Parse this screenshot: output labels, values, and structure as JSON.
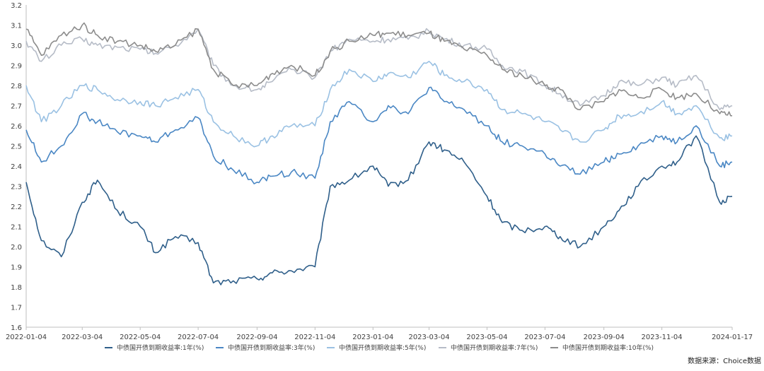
{
  "chart_data": {
    "type": "line",
    "ylim": [
      1.6,
      3.2
    ],
    "yticks": [
      "3.2",
      "3.1",
      "3.0",
      "2.9",
      "2.8",
      "2.7",
      "2.6",
      "2.5",
      "2.4",
      "2.3",
      "2.2",
      "2.1",
      "2.0",
      "1.9",
      "1.8",
      "1.7",
      "1.6"
    ],
    "xtick_labels": [
      "2022-01-04",
      "2022-03-04",
      "2022-05-04",
      "2022-07-04",
      "2022-09-04",
      "2022-11-04",
      "2023-01-04",
      "2023-03-04",
      "2023-05-04",
      "2023-07-04",
      "2023-09-04",
      "2023-11-04",
      "2024-01-17"
    ],
    "x": [
      "2022-01-04",
      "2022-01-20",
      "2022-02-10",
      "2022-03-04",
      "2022-03-20",
      "2022-04-10",
      "2022-05-04",
      "2022-05-20",
      "2022-06-10",
      "2022-07-04",
      "2022-07-20",
      "2022-08-10",
      "2022-09-04",
      "2022-09-20",
      "2022-10-10",
      "2022-11-04",
      "2022-11-20",
      "2022-12-10",
      "2023-01-04",
      "2023-01-20",
      "2023-02-10",
      "2023-03-04",
      "2023-03-20",
      "2023-04-10",
      "2023-05-04",
      "2023-05-20",
      "2023-06-10",
      "2023-07-04",
      "2023-07-20",
      "2023-08-10",
      "2023-09-04",
      "2023-09-20",
      "2023-10-10",
      "2023-11-04",
      "2023-11-20",
      "2023-12-10",
      "2024-01-04",
      "2024-01-17"
    ],
    "series": [
      {
        "name": "中债国开债到期收益率:1年(%)",
        "color": "#2f5f8a",
        "values": [
          2.32,
          2.03,
          1.95,
          2.22,
          2.33,
          2.18,
          2.1,
          1.97,
          2.05,
          2.02,
          1.82,
          1.83,
          1.84,
          1.87,
          1.88,
          1.9,
          2.3,
          2.33,
          2.4,
          2.3,
          2.33,
          2.52,
          2.48,
          2.42,
          2.25,
          2.12,
          2.08,
          2.1,
          2.05,
          2.0,
          2.1,
          2.18,
          2.3,
          2.4,
          2.42,
          2.55,
          2.22,
          2.25
        ]
      },
      {
        "name": "中债国开债到期收益率:3年(%)",
        "color": "#4a87c4",
        "values": [
          2.58,
          2.42,
          2.5,
          2.66,
          2.62,
          2.57,
          2.55,
          2.52,
          2.58,
          2.64,
          2.45,
          2.38,
          2.32,
          2.35,
          2.37,
          2.34,
          2.62,
          2.72,
          2.62,
          2.7,
          2.66,
          2.79,
          2.72,
          2.68,
          2.6,
          2.52,
          2.5,
          2.46,
          2.4,
          2.36,
          2.42,
          2.46,
          2.5,
          2.55,
          2.52,
          2.6,
          2.4,
          2.42
        ]
      },
      {
        "name": "中债国开债到期收益率:5年(%)",
        "color": "#9ac1e3",
        "values": [
          2.8,
          2.62,
          2.7,
          2.8,
          2.78,
          2.73,
          2.72,
          2.7,
          2.74,
          2.78,
          2.62,
          2.55,
          2.5,
          2.55,
          2.6,
          2.6,
          2.78,
          2.88,
          2.82,
          2.86,
          2.84,
          2.92,
          2.85,
          2.82,
          2.78,
          2.68,
          2.66,
          2.62,
          2.58,
          2.52,
          2.58,
          2.65,
          2.66,
          2.72,
          2.66,
          2.7,
          2.54,
          2.55
        ]
      },
      {
        "name": "中债国开债到期收益率:7年(%)",
        "color": "#b6bcc7",
        "values": [
          3.02,
          2.92,
          3.0,
          3.03,
          3.0,
          2.99,
          2.98,
          2.96,
          3.0,
          3.08,
          2.9,
          2.8,
          2.78,
          2.82,
          2.88,
          2.84,
          2.97,
          3.03,
          3.02,
          3.03,
          3.03,
          3.07,
          3.03,
          3.0,
          2.98,
          2.9,
          2.87,
          2.8,
          2.76,
          2.7,
          2.75,
          2.82,
          2.8,
          2.84,
          2.8,
          2.85,
          2.68,
          2.7
        ]
      },
      {
        "name": "中债国开债到期收益率:10年(%)",
        "color": "#8c8c8c",
        "values": [
          3.08,
          2.95,
          3.05,
          3.1,
          3.05,
          3.02,
          3.0,
          2.97,
          3.0,
          3.08,
          2.88,
          2.8,
          2.8,
          2.86,
          2.9,
          2.85,
          2.97,
          3.02,
          3.05,
          3.06,
          3.05,
          3.06,
          3.02,
          2.98,
          2.95,
          2.88,
          2.85,
          2.8,
          2.78,
          2.68,
          2.72,
          2.78,
          2.74,
          2.78,
          2.74,
          2.76,
          2.66,
          2.65
        ]
      }
    ],
    "xlabel": "",
    "ylabel": "",
    "grid": false,
    "legend_position": "bottom"
  },
  "source_text": "数据来源：Choice数据"
}
